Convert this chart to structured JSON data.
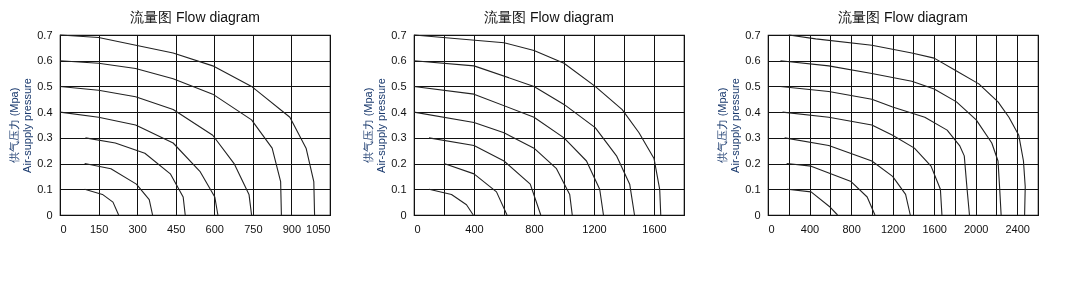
{
  "chart_data": [
    {
      "type": "line",
      "title": "流量图 Flow diagram",
      "ylabel": "供气压力  (Mpa)\nAir-supply pressure",
      "xlim": [
        0,
        1050
      ],
      "xticks": [
        0,
        150,
        300,
        450,
        600,
        750,
        900,
        1050
      ],
      "ylim": [
        0,
        0.7
      ],
      "yticks": [
        0,
        0.1,
        0.2,
        0.3,
        0.4,
        0.5,
        0.6,
        0.7
      ],
      "grid": true,
      "marker": "none",
      "line_style": "solid",
      "series": [
        {
          "color": "#222222",
          "x": [
            0,
            150,
            440,
            594,
            745,
            894,
            957,
            987,
            990
          ],
          "values": [
            0.7,
            0.69,
            0.63,
            0.58,
            0.5,
            0.38,
            0.26,
            0.13,
            0
          ]
        },
        {
          "color": "#222222",
          "x": [
            0,
            150,
            294,
            440,
            594,
            745,
            825,
            858,
            861
          ],
          "values": [
            0.6,
            0.59,
            0.57,
            0.53,
            0.47,
            0.37,
            0.26,
            0.13,
            0
          ]
        },
        {
          "color": "#222222",
          "x": [
            0,
            150,
            294,
            440,
            594,
            677,
            735,
            745
          ],
          "values": [
            0.5,
            0.485,
            0.46,
            0.41,
            0.31,
            0.2,
            0.08,
            0
          ]
        },
        {
          "color": "#222222",
          "x": [
            0,
            150,
            294,
            440,
            544,
            602,
            614
          ],
          "values": [
            0.4,
            0.38,
            0.35,
            0.28,
            0.17,
            0.07,
            0
          ]
        },
        {
          "color": "#222222",
          "x": [
            99,
            215,
            330,
            429,
            479,
            487
          ],
          "values": [
            0.3,
            0.28,
            0.24,
            0.16,
            0.07,
            0
          ]
        },
        {
          "color": "#222222",
          "x": [
            96,
            198,
            297,
            347,
            360
          ],
          "values": [
            0.2,
            0.18,
            0.12,
            0.06,
            0
          ]
        },
        {
          "color": "#222222",
          "x": [
            96,
            165,
            206,
            228
          ],
          "values": [
            0.1,
            0.08,
            0.05,
            0
          ]
        }
      ]
    },
    {
      "type": "line",
      "title": "流量图 Flow diagram",
      "ylabel": "供气压力  (Mpa)\nAir-supply pressure",
      "xlim": [
        0,
        1800
      ],
      "xticks": [
        0,
        {
          "value": 200,
          "label": null
        },
        400,
        {
          "value": 600,
          "label": null
        },
        800,
        {
          "value": 1000,
          "label": null
        },
        1200,
        {
          "value": 1400,
          "label": null
        },
        1600,
        {
          "value": 1800,
          "label": null
        }
      ],
      "ylim": [
        0,
        0.7
      ],
      "yticks": [
        0,
        0.1,
        0.2,
        0.3,
        0.4,
        0.5,
        0.6,
        0.7
      ],
      "grid": true,
      "marker": "none",
      "line_style": "solid",
      "series": [
        {
          "color": "#222222",
          "x": [
            0,
            600,
            800,
            1000,
            1208,
            1388,
            1500,
            1600,
            1638,
            1645
          ],
          "values": [
            0.7,
            0.67,
            0.64,
            0.59,
            0.5,
            0.41,
            0.32,
            0.22,
            0.1,
            0
          ]
        },
        {
          "color": "#222222",
          "x": [
            0,
            400,
            800,
            1000,
            1208,
            1350,
            1438,
            1470
          ],
          "values": [
            0.6,
            0.58,
            0.5,
            0.43,
            0.34,
            0.23,
            0.12,
            0
          ]
        },
        {
          "color": "#222222",
          "x": [
            0,
            400,
            800,
            1000,
            1150,
            1238,
            1263
          ],
          "values": [
            0.5,
            0.47,
            0.38,
            0.3,
            0.21,
            0.1,
            0
          ]
        },
        {
          "color": "#222222",
          "x": [
            0,
            400,
            600,
            800,
            950,
            1038,
            1055
          ],
          "values": [
            0.4,
            0.36,
            0.32,
            0.26,
            0.18,
            0.08,
            0
          ]
        },
        {
          "color": "#222222",
          "x": [
            100,
            400,
            600,
            775,
            845
          ],
          "values": [
            0.3,
            0.27,
            0.21,
            0.12,
            0
          ]
        },
        {
          "color": "#222222",
          "x": [
            200,
            400,
            550,
            620
          ],
          "values": [
            0.2,
            0.16,
            0.09,
            0
          ]
        },
        {
          "color": "#222222",
          "x": [
            100,
            250,
            350,
            395
          ],
          "values": [
            0.1,
            0.08,
            0.04,
            0
          ]
        }
      ]
    },
    {
      "type": "line",
      "title": "流量图 Flow diagram",
      "ylabel": "供气压力  (Mpa)\nAir-supply pressure",
      "xlim": [
        0,
        2600
      ],
      "xticks": [
        0,
        {
          "value": 200,
          "label": null
        },
        400,
        {
          "value": 600,
          "label": null
        },
        800,
        {
          "value": 1000,
          "label": null
        },
        1200,
        {
          "value": 1400,
          "label": null
        },
        1600,
        {
          "value": 1800,
          "label": null
        },
        2000,
        {
          "value": 2200,
          "label": null
        },
        2400,
        {
          "value": 2600,
          "label": null
        }
      ],
      "ylim": [
        0,
        0.7
      ],
      "yticks": [
        0,
        0.1,
        0.2,
        0.3,
        0.4,
        0.5,
        0.6,
        0.7
      ],
      "grid": true,
      "marker": "none",
      "line_style": "solid",
      "series": [
        {
          "color": "#222222",
          "x": [
            200,
            460,
            1000,
            1385,
            1600,
            1815,
            2030,
            2215,
            2320,
            2415,
            2460,
            2477,
            2471
          ],
          "values": [
            0.7,
            0.685,
            0.66,
            0.63,
            0.61,
            0.56,
            0.51,
            0.44,
            0.38,
            0.31,
            0.21,
            0.11,
            0
          ]
        },
        {
          "color": "#222222",
          "x": [
            120,
            585,
            1000,
            1385,
            1600,
            1815,
            2005,
            2155,
            2215,
            2230,
            2245
          ],
          "values": [
            0.6,
            0.58,
            0.55,
            0.52,
            0.49,
            0.44,
            0.37,
            0.28,
            0.21,
            0.11,
            0
          ]
        },
        {
          "color": "#222222",
          "x": [
            120,
            585,
            1000,
            1200,
            1510,
            1725,
            1845,
            1890,
            1915,
            1940
          ],
          "values": [
            0.5,
            0.48,
            0.45,
            0.42,
            0.38,
            0.33,
            0.27,
            0.23,
            0.11,
            0
          ]
        },
        {
          "color": "#222222",
          "x": [
            140,
            585,
            1000,
            1200,
            1410,
            1570,
            1660,
            1675
          ],
          "values": [
            0.4,
            0.38,
            0.35,
            0.31,
            0.26,
            0.19,
            0.1,
            0
          ]
        },
        {
          "color": "#222222",
          "x": [
            160,
            585,
            1000,
            1200,
            1325,
            1370
          ],
          "values": [
            0.3,
            0.27,
            0.21,
            0.15,
            0.08,
            0
          ]
        },
        {
          "color": "#222222",
          "x": [
            180,
            415,
            800,
            955,
            1030
          ],
          "values": [
            0.2,
            0.19,
            0.13,
            0.07,
            0
          ]
        },
        {
          "color": "#222222",
          "x": [
            185,
            415,
            600,
            670
          ],
          "values": [
            0.1,
            0.09,
            0.03,
            0
          ]
        }
      ]
    }
  ]
}
